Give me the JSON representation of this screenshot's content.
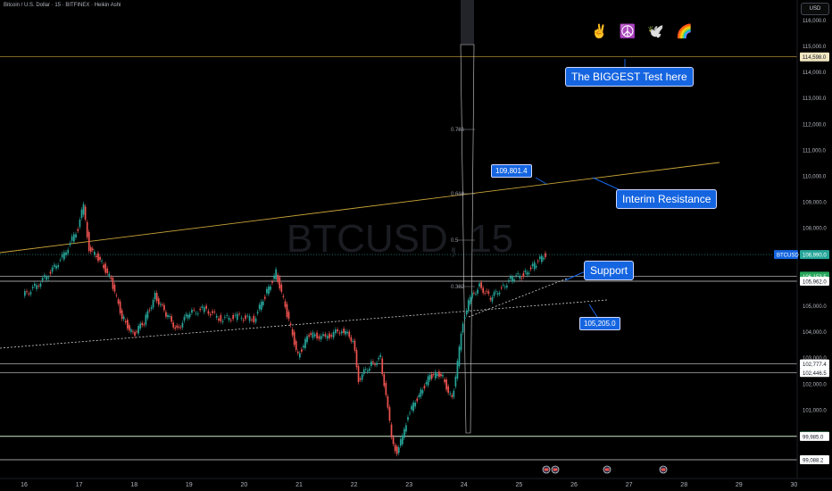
{
  "header": {
    "title": "Bitcoin / U.S. Dollar · 15 · BITFINEX · Heikin Ashi",
    "currency_button": "USD"
  },
  "watermark": "BTCUSD, 15",
  "emojis": [
    "✌️",
    "☮️",
    "🕊️",
    "🌈"
  ],
  "callouts": {
    "biggest_test": "The BIGGEST Test here",
    "interim_resistance": "Interim Resistance",
    "support": "Support",
    "resistance_value": "109,801.4",
    "support_value": "105,205.0"
  },
  "colors": {
    "background": "#000000",
    "up_candle": "#26a69a",
    "down_candle": "#ef5350",
    "callout": "#1565e0",
    "gold_line": "#c8a23a",
    "green_badge": "#26a65b"
  },
  "chart_data": {
    "type": "candlestick",
    "symbol": "BTCUSD",
    "interval": "15",
    "style": "Heikin Ashi",
    "ylim": [
      98800,
      117000
    ],
    "y_ticks": [
      "116,000.0",
      "115,000.0",
      "114,000.0",
      "113,000.0",
      "112,000.0",
      "111,000.0",
      "110,000.0",
      "109,000.0",
      "108,000.0",
      "107,000.0",
      "105,000.0",
      "104,000.0",
      "103,000.0",
      "102,000.0",
      "101,000.0"
    ],
    "x_ticks": [
      "16",
      "17",
      "18",
      "19",
      "20",
      "21",
      "22",
      "23",
      "24",
      "25",
      "26",
      "27",
      "28",
      "29",
      "30"
    ],
    "close_path": [
      [
        16.0,
        105400
      ],
      [
        16.25,
        105800
      ],
      [
        16.5,
        106300
      ],
      [
        16.75,
        107000
      ],
      [
        17.0,
        108000
      ],
      [
        17.1,
        108900
      ],
      [
        17.2,
        107200
      ],
      [
        17.4,
        106800
      ],
      [
        17.6,
        106000
      ],
      [
        17.8,
        104600
      ],
      [
        18.0,
        103900
      ],
      [
        18.2,
        104400
      ],
      [
        18.4,
        105400
      ],
      [
        18.6,
        104700
      ],
      [
        18.8,
        104100
      ],
      [
        19.0,
        104700
      ],
      [
        19.3,
        104900
      ],
      [
        19.6,
        104500
      ],
      [
        19.9,
        104600
      ],
      [
        20.2,
        104500
      ],
      [
        20.4,
        105400
      ],
      [
        20.6,
        106300
      ],
      [
        20.8,
        104700
      ],
      [
        21.0,
        103100
      ],
      [
        21.2,
        103900
      ],
      [
        21.5,
        103800
      ],
      [
        21.8,
        104100
      ],
      [
        22.0,
        103700
      ],
      [
        22.1,
        102200
      ],
      [
        22.3,
        102700
      ],
      [
        22.5,
        103000
      ],
      [
        22.6,
        101500
      ],
      [
        22.7,
        100000
      ],
      [
        22.8,
        99300
      ],
      [
        22.9,
        100000
      ],
      [
        23.0,
        100800
      ],
      [
        23.2,
        101600
      ],
      [
        23.4,
        102300
      ],
      [
        23.6,
        102400
      ],
      [
        23.8,
        101400
      ],
      [
        23.9,
        102800
      ],
      [
        24.0,
        104400
      ],
      [
        24.1,
        105200
      ],
      [
        24.3,
        105800
      ],
      [
        24.5,
        105300
      ],
      [
        24.7,
        105700
      ],
      [
        24.9,
        106100
      ],
      [
        25.1,
        106200
      ],
      [
        25.3,
        106600
      ],
      [
        25.5,
        107000
      ]
    ],
    "horizontal_levels": [
      {
        "label": "114,598.0",
        "value": 114598
      },
      {
        "label": "106,153.5",
        "value": 106153.5
      },
      {
        "label": "105,962.0",
        "value": 105962
      },
      {
        "label": "102,777.4",
        "value": 102777.4
      },
      {
        "label": "102,446.5",
        "value": 102446.5
      },
      {
        "label": "100,000.0",
        "value": 100000
      },
      {
        "label": "99,985.0",
        "value": 99985
      },
      {
        "label": "99,088.2",
        "value": 99088.2
      }
    ],
    "last_price": {
      "label": "BTCUSD",
      "value_label": "106,990.0",
      "value": 106990
    },
    "fib_levels": [
      "0.786",
      "0.618",
      "0.5",
      "0.382"
    ]
  }
}
